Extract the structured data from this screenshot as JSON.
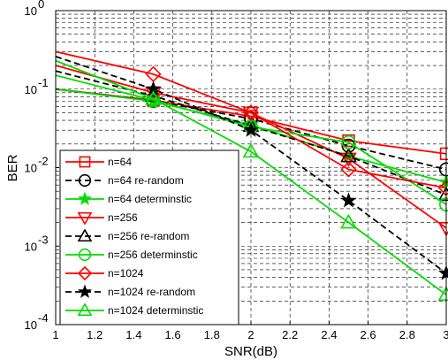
{
  "chart_data": {
    "type": "line",
    "xlabel": "SNR(dB)",
    "ylabel": "BER",
    "xlim": [
      1,
      3
    ],
    "ylim": [
      0.0001,
      1
    ],
    "yscale": "log",
    "grid": true,
    "grid_style": "dashed",
    "legend_position": "bottom-left",
    "x_ticks": [
      "1",
      "1.2",
      "1.4",
      "1.6",
      "1.8",
      "2",
      "2.2",
      "2.4",
      "2.6",
      "2.8",
      "3"
    ],
    "y_ticks": [
      {
        "base": "10",
        "exp": "-4"
      },
      {
        "base": "10",
        "exp": "-3"
      },
      {
        "base": "10",
        "exp": "-2"
      },
      {
        "base": "10",
        "exp": "-1"
      },
      {
        "base": "10",
        "exp": "0"
      }
    ],
    "x": [
      1,
      1.5,
      2,
      2.5,
      3
    ],
    "series": [
      {
        "name": "n=64",
        "color": "#ff0000",
        "dash": "solid",
        "marker": "square",
        "values": [
          0.1,
          0.072,
          0.045,
          0.022,
          0.015
        ]
      },
      {
        "name": "n=64 re-random",
        "color": "#000000",
        "dash": "dashed",
        "marker": "circle",
        "values": [
          0.1,
          0.071,
          0.042,
          0.019,
          0.0095
        ]
      },
      {
        "name": "n=64 determinstic",
        "color": "#00dd00",
        "dash": "solid",
        "marker": "star",
        "values": [
          0.1,
          0.07,
          0.035,
          0.014,
          0.0065
        ]
      },
      {
        "name": "n=256",
        "color": "#ff0000",
        "dash": "solid",
        "marker": "triangle-down",
        "values": [
          0.2,
          0.09,
          0.05,
          0.013,
          0.0017
        ]
      },
      {
        "name": "n=256 re-random",
        "color": "#000000",
        "dash": "dashed",
        "marker": "triangle-up",
        "values": [
          0.17,
          0.082,
          0.034,
          0.014,
          0.0045
        ]
      },
      {
        "name": "n=256 determinstic",
        "color": "#00dd00",
        "dash": "solid",
        "marker": "circle",
        "values": [
          0.15,
          0.072,
          0.033,
          0.021,
          0.0034
        ]
      },
      {
        "name": "n=1024",
        "color": "#ff0000",
        "dash": "solid",
        "marker": "diamond",
        "values": [
          0.3,
          0.155,
          0.05,
          0.0095,
          0.0055
        ]
      },
      {
        "name": "n=1024 re-random",
        "color": "#000000",
        "dash": "dashed",
        "marker": "star",
        "values": [
          0.26,
          0.1,
          0.03,
          0.0038,
          0.00045
        ]
      },
      {
        "name": "n=1024 determinstic",
        "color": "#00dd00",
        "dash": "solid",
        "marker": "triangle-up",
        "values": [
          0.23,
          0.075,
          0.016,
          0.002,
          0.00024
        ]
      }
    ]
  }
}
